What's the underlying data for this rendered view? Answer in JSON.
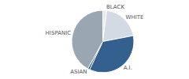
{
  "chart_data": {
    "type": "pie",
    "categories": [
      "BLACK",
      "WHITE",
      "A.I.",
      "ASIAN",
      "HISPANIC"
    ],
    "values": [
      2,
      20,
      35,
      1,
      42
    ],
    "colors": [
      "#e6eaef",
      "#d3dae3",
      "#34608f",
      "#1f3f66",
      "#9ba6b3"
    ],
    "legend": false
  }
}
